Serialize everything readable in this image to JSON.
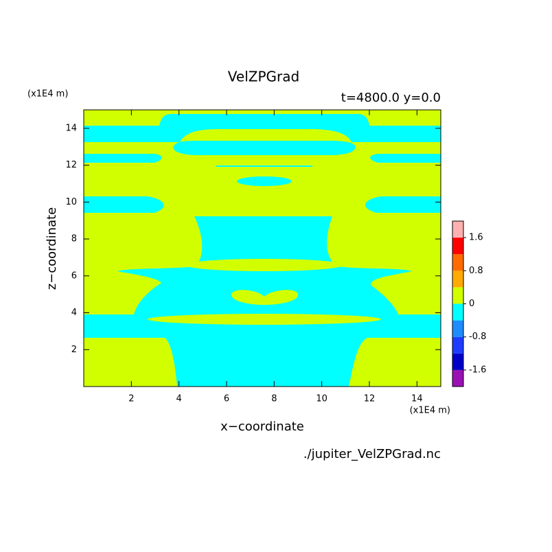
{
  "chart_data": {
    "type": "contour",
    "title": "VelZPGrad",
    "subtitle": "t=4800.0 y=0.0",
    "xlabel": "x−coordinate",
    "ylabel": "z−coordinate",
    "x_unit": "(x1E4 m)",
    "y_unit": "(x1E4 m)",
    "xlim": [
      0,
      15
    ],
    "ylim": [
      0,
      15
    ],
    "xticks": [
      2,
      4,
      6,
      8,
      10,
      12,
      14
    ],
    "yticks": [
      2,
      4,
      6,
      8,
      10,
      12,
      14
    ],
    "colorbar": {
      "lim": [
        -2,
        2
      ],
      "ticks": [
        -1.6,
        -0.8,
        0,
        0.8,
        1.6
      ],
      "colors": [
        "#9a10b4",
        "#0000c8",
        "#1e3cff",
        "#1e8cff",
        "#00ffff",
        "#d2ff00",
        "#ffaa00",
        "#ff6a00",
        "#ff0000",
        "#ffb0b0"
      ]
    },
    "source": "./jupiter_VelZPGrad.nc"
  }
}
